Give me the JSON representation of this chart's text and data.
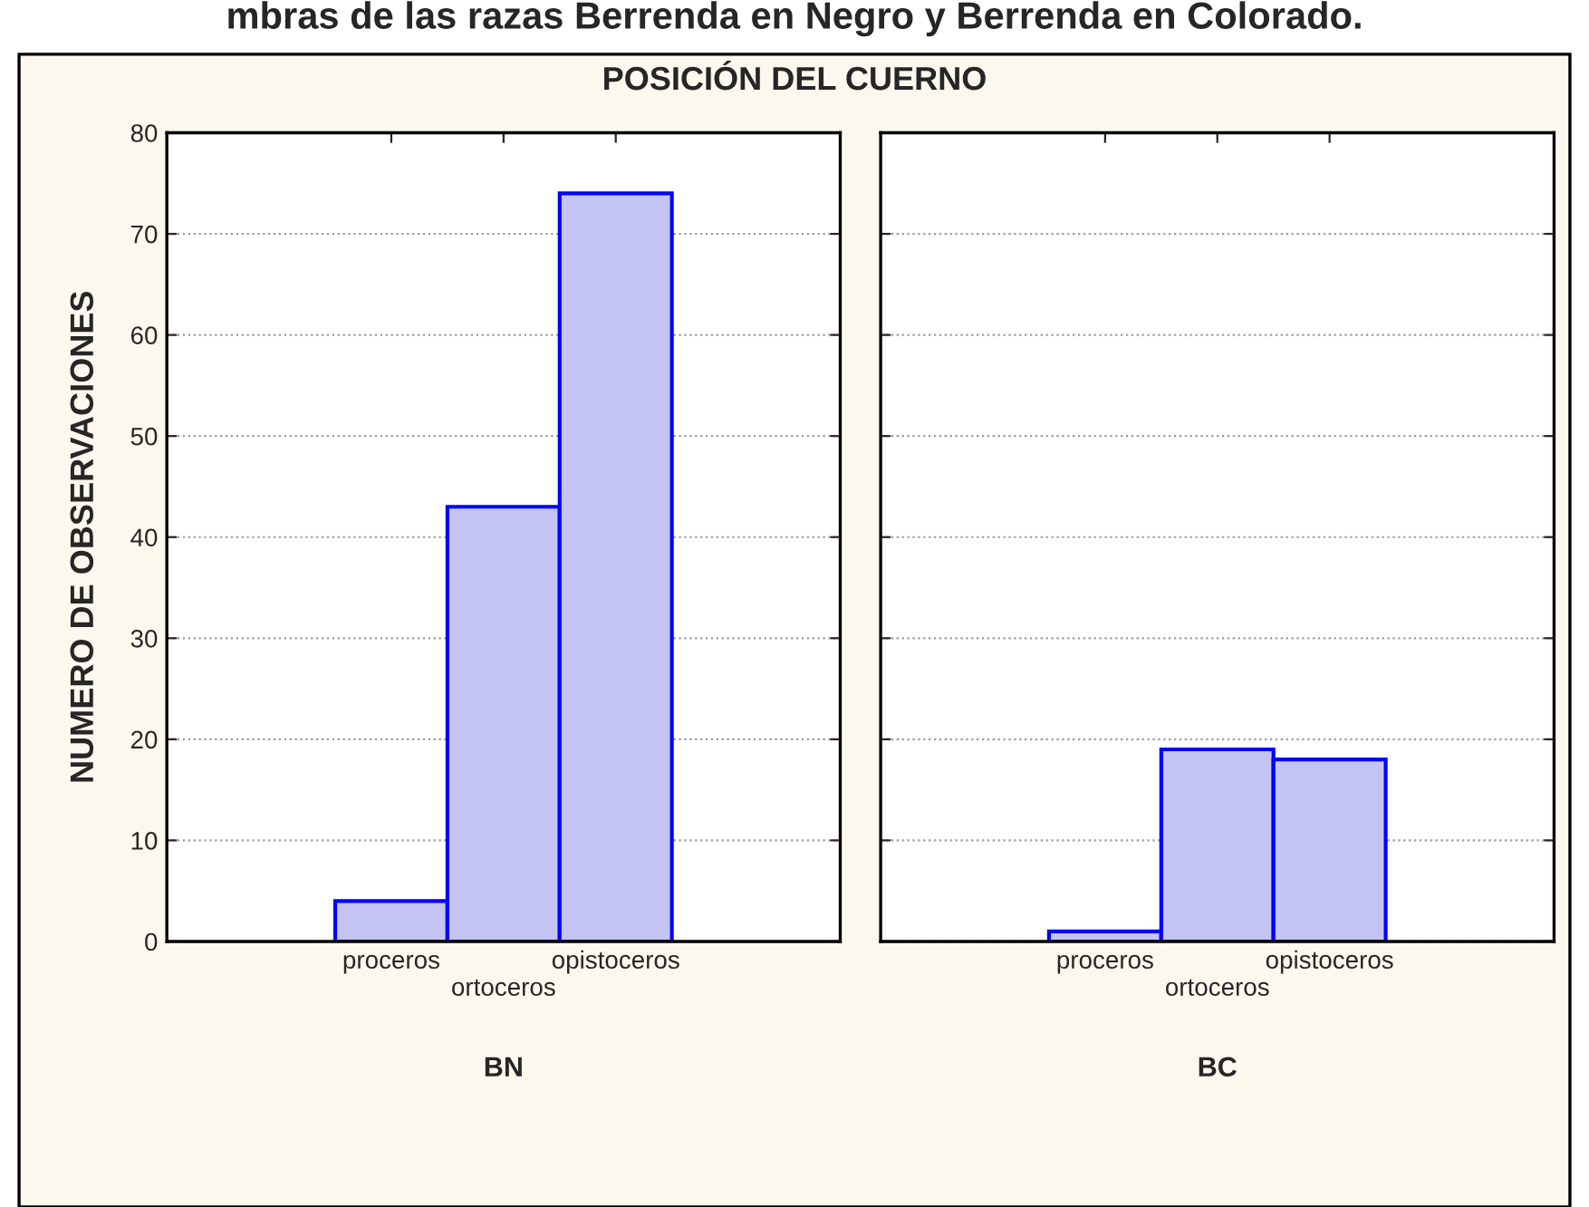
{
  "chart_data": [
    {
      "type": "bar",
      "title": "POSICIÓN DEL CUERNO",
      "annotations": [
        "mbras de las razas Berrenda en Negro y Berrenda en Colorado."
      ],
      "ylabel": "NUMERO DE OBSERVACIONES",
      "xlabel": "BN",
      "categories": [
        "proceros",
        "ortoceros",
        "opistoceros"
      ],
      "values": [
        4,
        43,
        74
      ],
      "color": "#c4c4f4",
      "ylim": [
        0,
        80
      ],
      "yticks": [
        0,
        10,
        20,
        30,
        40,
        50,
        60,
        70,
        80
      ],
      "grid": "y"
    },
    {
      "type": "bar",
      "xlabel": "BC",
      "categories": [
        "proceros",
        "ortoceros",
        "opistoceros"
      ],
      "values": [
        1,
        19,
        18
      ],
      "color": "#c4c4f4",
      "ylim": [
        0,
        80
      ],
      "yticks": [
        0,
        10,
        20,
        30,
        40,
        50,
        60,
        70,
        80
      ],
      "grid": "y",
      "tick_labels": "x"
    }
  ]
}
